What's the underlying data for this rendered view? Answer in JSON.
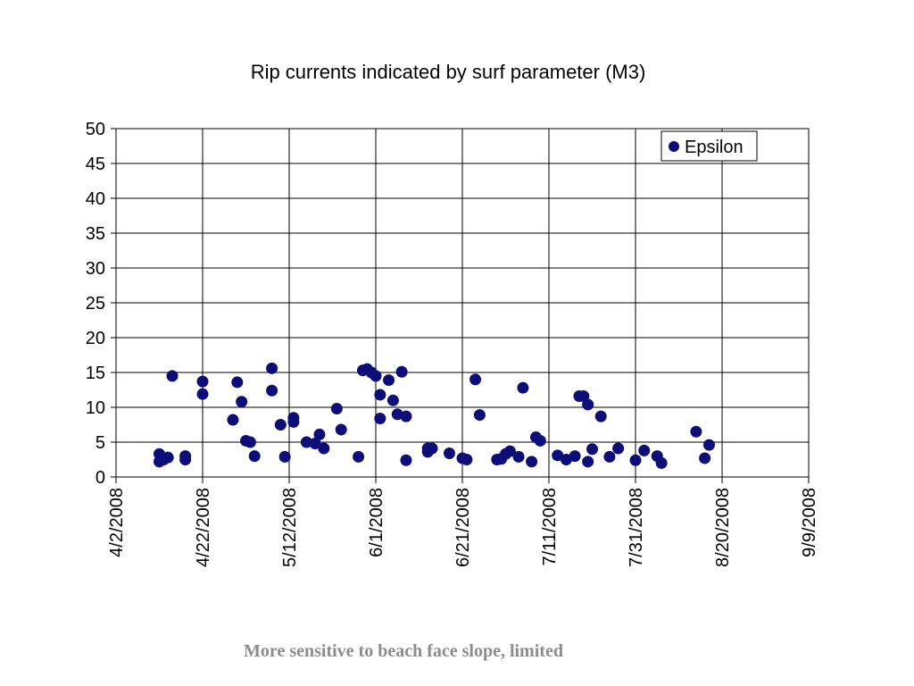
{
  "caption": {
    "text": "More sensitive to beach face slope, limited",
    "color": "#8c8c8c"
  },
  "chart_data": {
    "type": "scatter",
    "title": "Rip currents indicated by surf parameter (M3)",
    "xlabel": "",
    "ylabel": "",
    "xlim": [
      "2008-04-02",
      "2008-09-09"
    ],
    "x_ticks": [
      "4/2/2008",
      "4/22/2008",
      "5/12/2008",
      "6/1/2008",
      "6/21/2008",
      "7/11/2008",
      "7/31/2008",
      "8/20/2008",
      "9/9/2008"
    ],
    "ylim": [
      0,
      50
    ],
    "y_ticks": [
      "0",
      "5",
      "10",
      "15",
      "20",
      "25",
      "30",
      "35",
      "40",
      "45",
      "50"
    ],
    "grid": true,
    "legend_position": "top-right",
    "marker_color": "#0d0d7a",
    "series": [
      {
        "name": "Epsilon",
        "points": [
          [
            "2008-04-12",
            3.3
          ],
          [
            "2008-04-12",
            2.2
          ],
          [
            "2008-04-13",
            2.5
          ],
          [
            "2008-04-14",
            2.8
          ],
          [
            "2008-04-15",
            14.5
          ],
          [
            "2008-04-18",
            3.0
          ],
          [
            "2008-04-18",
            2.5
          ],
          [
            "2008-04-22",
            13.7
          ],
          [
            "2008-04-22",
            11.9
          ],
          [
            "2008-04-29",
            8.2
          ],
          [
            "2008-04-30",
            13.6
          ],
          [
            "2008-05-01",
            10.8
          ],
          [
            "2008-05-02",
            5.2
          ],
          [
            "2008-05-03",
            5.0
          ],
          [
            "2008-05-04",
            3.0
          ],
          [
            "2008-05-08",
            15.6
          ],
          [
            "2008-05-08",
            12.4
          ],
          [
            "2008-05-10",
            7.5
          ],
          [
            "2008-05-11",
            2.9
          ],
          [
            "2008-05-13",
            8.5
          ],
          [
            "2008-05-13",
            7.9
          ],
          [
            "2008-05-16",
            5.0
          ],
          [
            "2008-05-18",
            4.8
          ],
          [
            "2008-05-19",
            6.1
          ],
          [
            "2008-05-20",
            4.1
          ],
          [
            "2008-05-23",
            9.8
          ],
          [
            "2008-05-24",
            6.8
          ],
          [
            "2008-05-28",
            2.9
          ],
          [
            "2008-05-29",
            15.3
          ],
          [
            "2008-05-30",
            15.5
          ],
          [
            "2008-05-31",
            15.0
          ],
          [
            "2008-06-01",
            14.5
          ],
          [
            "2008-06-02",
            11.8
          ],
          [
            "2008-06-02",
            8.4
          ],
          [
            "2008-06-04",
            13.9
          ],
          [
            "2008-06-05",
            11.0
          ],
          [
            "2008-06-06",
            9.0
          ],
          [
            "2008-06-07",
            15.1
          ],
          [
            "2008-06-08",
            8.7
          ],
          [
            "2008-06-08",
            2.4
          ],
          [
            "2008-06-13",
            3.6
          ],
          [
            "2008-06-13",
            4.1
          ],
          [
            "2008-06-14",
            4.1
          ],
          [
            "2008-06-18",
            3.4
          ],
          [
            "2008-06-21",
            2.7
          ],
          [
            "2008-06-22",
            2.5
          ],
          [
            "2008-06-24",
            14.0
          ],
          [
            "2008-06-25",
            8.9
          ],
          [
            "2008-06-29",
            2.5
          ],
          [
            "2008-06-30",
            2.6
          ],
          [
            "2008-07-01",
            3.3
          ],
          [
            "2008-07-02",
            3.7
          ],
          [
            "2008-07-04",
            2.9
          ],
          [
            "2008-07-05",
            12.8
          ],
          [
            "2008-07-07",
            2.2
          ],
          [
            "2008-07-08",
            5.7
          ],
          [
            "2008-07-09",
            5.2
          ],
          [
            "2008-07-13",
            3.1
          ],
          [
            "2008-07-15",
            2.5
          ],
          [
            "2008-07-17",
            3.0
          ],
          [
            "2008-07-18",
            11.6
          ],
          [
            "2008-07-19",
            11.6
          ],
          [
            "2008-07-20",
            10.4
          ],
          [
            "2008-07-20",
            2.2
          ],
          [
            "2008-07-21",
            4.0
          ],
          [
            "2008-07-23",
            8.7
          ],
          [
            "2008-07-25",
            2.9
          ],
          [
            "2008-07-27",
            4.1
          ],
          [
            "2008-07-31",
            2.4
          ],
          [
            "2008-08-02",
            3.8
          ],
          [
            "2008-08-05",
            3.0
          ],
          [
            "2008-08-06",
            2.0
          ],
          [
            "2008-08-14",
            6.5
          ],
          [
            "2008-08-16",
            2.7
          ],
          [
            "2008-08-17",
            4.6
          ]
        ]
      }
    ]
  }
}
